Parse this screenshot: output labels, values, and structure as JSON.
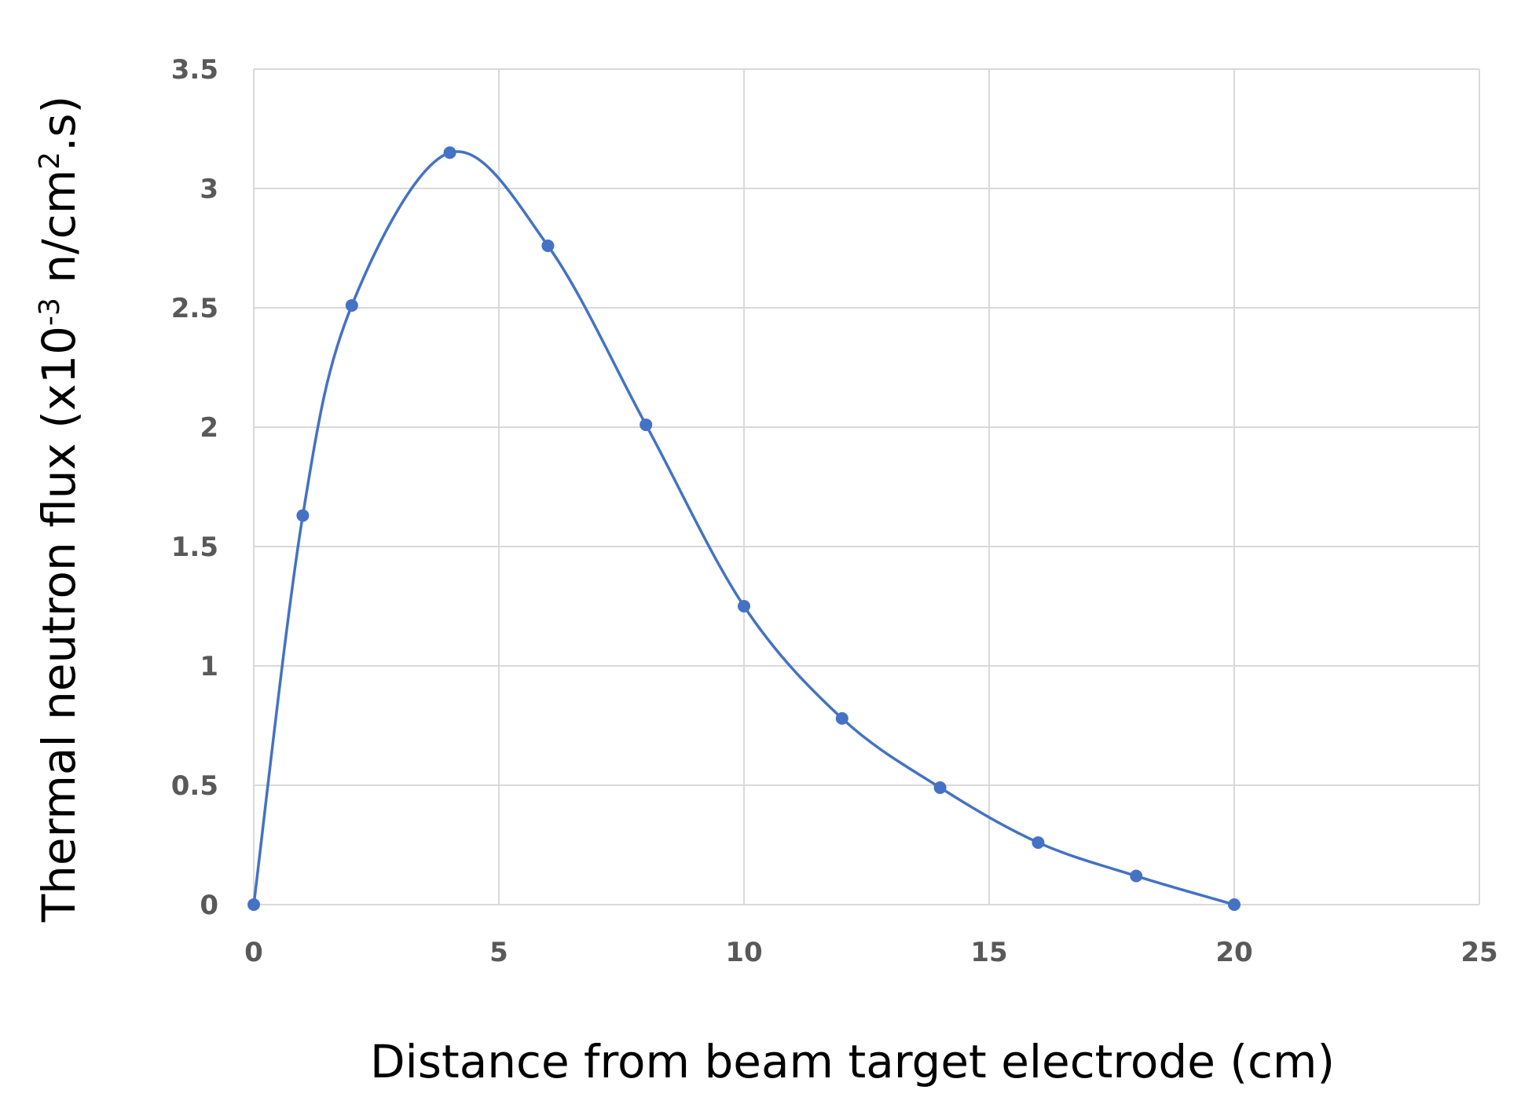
{
  "chart_data": {
    "type": "scatter",
    "xlabel": "Distance from beam target electrode (cm)",
    "ylabel": {
      "main": "Thermal neutron flux (x10",
      "exp1": "-3",
      "mid": " n/cm",
      "exp2": "2",
      "end": ".s)"
    },
    "xlim": [
      0,
      25
    ],
    "ylim": [
      0,
      3.5
    ],
    "x_ticks": [
      "0",
      "5",
      "10",
      "15",
      "20",
      "25"
    ],
    "y_ticks": [
      "0",
      "0.5",
      "1",
      "1.5",
      "2",
      "2.5",
      "3",
      "3.5"
    ],
    "grid": true,
    "line_style": "smoothed line with markers",
    "series_color": "#4472C4",
    "series": [
      {
        "x": [
          0,
          1,
          2,
          4,
          6,
          8,
          10,
          12,
          14,
          16,
          18,
          20
        ],
        "y": [
          0,
          1.63,
          2.51,
          3.15,
          2.76,
          2.01,
          1.25,
          0.78,
          0.49,
          0.26,
          0.12,
          0
        ]
      }
    ]
  }
}
